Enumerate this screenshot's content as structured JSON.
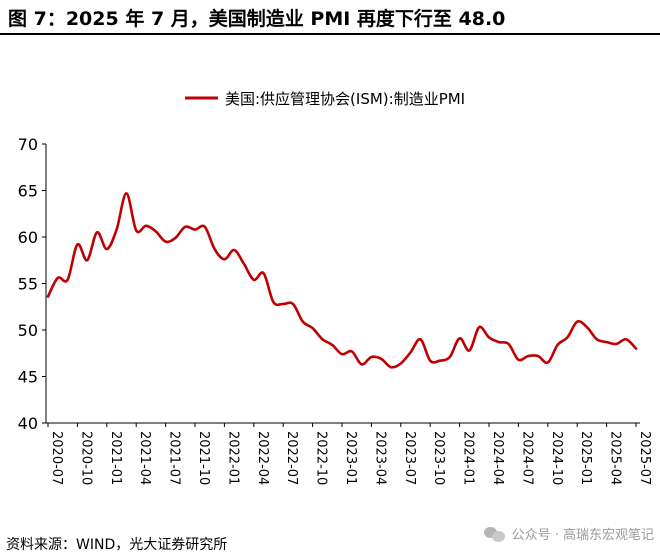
{
  "figure": {
    "title": "图 7：2025 年 7 月，美国制造业 PMI 再度下行至 48.0",
    "source": "资料来源：WIND，光大证券研究所",
    "watermark": "公众号 · 高瑞东宏观笔记",
    "watermark_icon": "wechat-icon"
  },
  "chart_data": {
    "type": "line",
    "title": "",
    "xlabel": "",
    "ylabel": "",
    "ylim": [
      40,
      70
    ],
    "yticks": [
      40,
      45,
      50,
      55,
      60,
      65,
      70
    ],
    "xticks": [
      "2020-07",
      "2020-10",
      "2021-01",
      "2021-04",
      "2021-07",
      "2021-10",
      "2022-01",
      "2022-04",
      "2022-07",
      "2022-10",
      "2023-01",
      "2023-04",
      "2023-07",
      "2023-10",
      "2024-01",
      "2024-04",
      "2024-07",
      "2024-10",
      "2025-01",
      "2025-04",
      "2025-07"
    ],
    "legend_position": "top-center",
    "grid": false,
    "series": [
      {
        "name": "美国:供应管理协会(ISM):制造业PMI",
        "color": "#c00000",
        "x": [
          "2020-07",
          "2020-08",
          "2020-09",
          "2020-10",
          "2020-11",
          "2020-12",
          "2021-01",
          "2021-02",
          "2021-03",
          "2021-04",
          "2021-05",
          "2021-06",
          "2021-07",
          "2021-08",
          "2021-09",
          "2021-10",
          "2021-11",
          "2021-12",
          "2022-01",
          "2022-02",
          "2022-03",
          "2022-04",
          "2022-05",
          "2022-06",
          "2022-07",
          "2022-08",
          "2022-09",
          "2022-10",
          "2022-11",
          "2022-12",
          "2023-01",
          "2023-02",
          "2023-03",
          "2023-04",
          "2023-05",
          "2023-06",
          "2023-07",
          "2023-08",
          "2023-09",
          "2023-10",
          "2023-11",
          "2023-12",
          "2024-01",
          "2024-02",
          "2024-03",
          "2024-04",
          "2024-05",
          "2024-06",
          "2024-07",
          "2024-08",
          "2024-09",
          "2024-10",
          "2024-11",
          "2024-12",
          "2025-01",
          "2025-02",
          "2025-03",
          "2025-04",
          "2025-05",
          "2025-06",
          "2025-07"
        ],
        "values": [
          53.6,
          55.6,
          55.4,
          59.2,
          57.5,
          60.5,
          58.7,
          60.8,
          64.7,
          60.7,
          61.2,
          60.6,
          59.5,
          59.9,
          61.1,
          60.8,
          61.1,
          58.7,
          57.6,
          58.6,
          57.1,
          55.4,
          56.1,
          53.0,
          52.8,
          52.8,
          50.9,
          50.2,
          49.0,
          48.4,
          47.4,
          47.7,
          46.3,
          47.1,
          46.9,
          46.0,
          46.4,
          47.6,
          49.0,
          46.7,
          46.7,
          47.1,
          49.1,
          47.8,
          50.3,
          49.2,
          48.7,
          48.5,
          46.8,
          47.2,
          47.2,
          46.5,
          48.4,
          49.2,
          50.9,
          50.3,
          49.0,
          48.7,
          48.5,
          49.0,
          48.0
        ]
      }
    ]
  }
}
